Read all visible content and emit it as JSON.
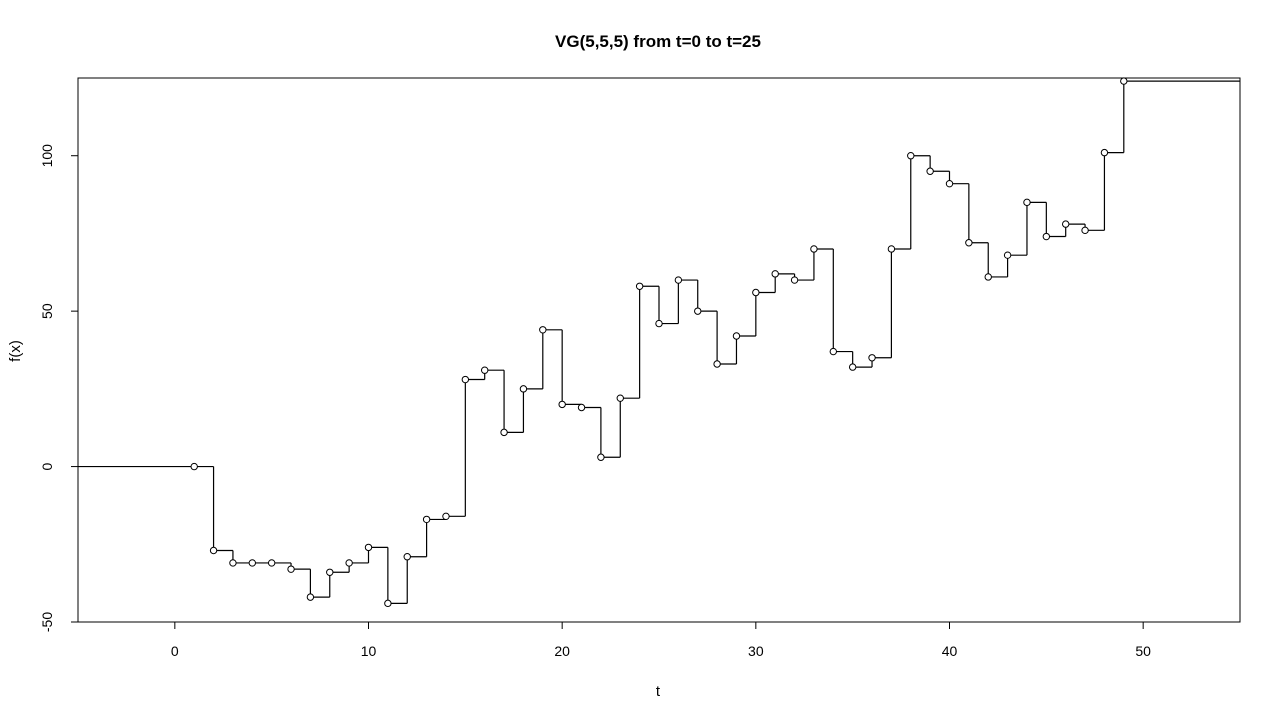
{
  "chart_data": {
    "type": "line",
    "style": "step",
    "title": "VG(5,5,5) from t=0 to t=25",
    "xlabel": "t",
    "ylabel": "f(x)",
    "xlim": [
      -5,
      55
    ],
    "ylim": [
      -50,
      125
    ],
    "x_ticks": [
      0,
      10,
      20,
      30,
      40,
      50
    ],
    "y_ticks": [
      -50,
      0,
      50,
      100
    ],
    "x_tick_labels": [
      "0",
      "10",
      "20",
      "30",
      "40",
      "50"
    ],
    "y_tick_labels": [
      "-50",
      "0",
      "50",
      "100"
    ],
    "grid": false,
    "legend": false,
    "line_color": "#000000",
    "series": [
      {
        "x": [
          1,
          2,
          3,
          4,
          5,
          6,
          7,
          8,
          9,
          10,
          11,
          12,
          13,
          14,
          15,
          16,
          17,
          18,
          19,
          20,
          21,
          22,
          23,
          24,
          25,
          26,
          27,
          28,
          29,
          30,
          31,
          32,
          33,
          34,
          35,
          36,
          37,
          38,
          39,
          40,
          41,
          42,
          43,
          44,
          45,
          46,
          47,
          48,
          49
        ],
        "y": [
          0,
          -27,
          -31,
          -31,
          -31,
          -33,
          -42,
          -34,
          -31,
          -26,
          -44,
          -29,
          -17,
          -16,
          28,
          31,
          11,
          25,
          44,
          20,
          19,
          3,
          22,
          58,
          46,
          60,
          50,
          33,
          42,
          56,
          62,
          60,
          70,
          37,
          32,
          35,
          70,
          100,
          95,
          91,
          72,
          61,
          68,
          85,
          74,
          78,
          76,
          101,
          124
        ]
      }
    ]
  }
}
